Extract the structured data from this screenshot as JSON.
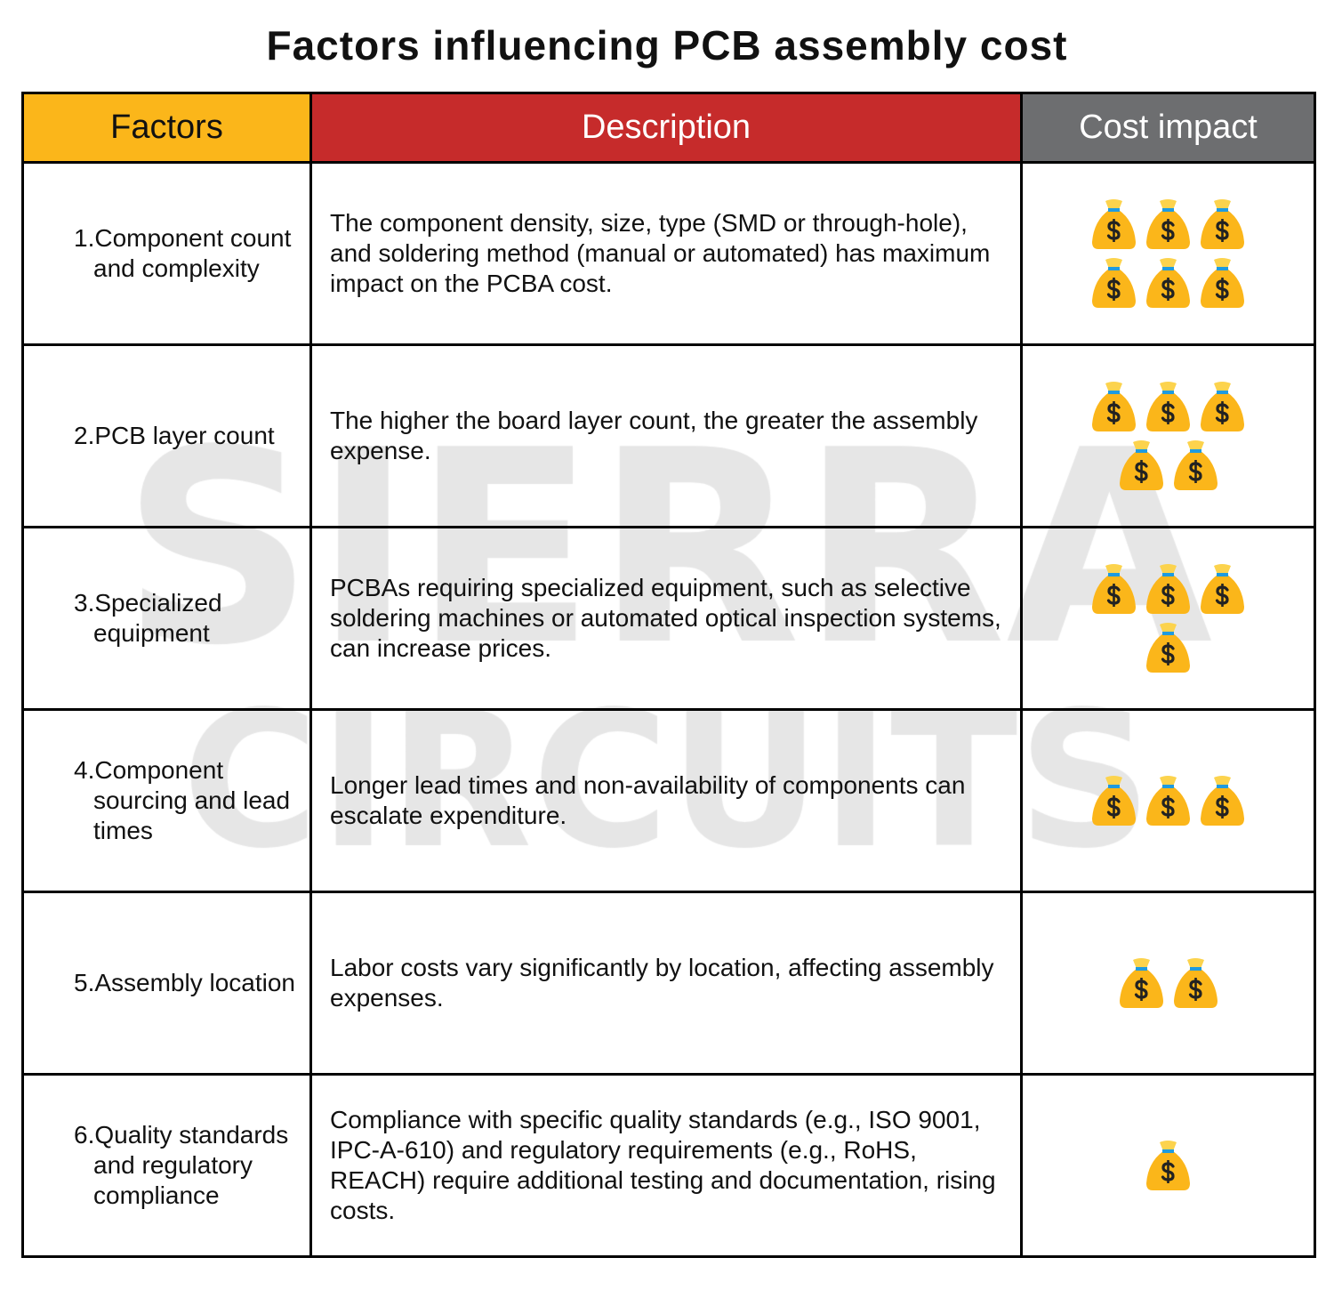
{
  "title": "Factors influencing PCB assembly cost",
  "watermark": [
    "SIERRA",
    "CIRCUITS"
  ],
  "headers": {
    "factors": "Factors",
    "description": "Description",
    "cost": "Cost impact"
  },
  "colors": {
    "factors_header": "#fbb61a",
    "description_header": "#c62b2b",
    "cost_header": "#6d6e70",
    "money_bag": "#fbb61a"
  },
  "rows": [
    {
      "factor": "1.Component count and complexity",
      "description": "The component density, size, type (SMD or through-hole), and soldering method (manual or automated) has maximum impact on the PCBA cost.",
      "cost_icons": 6
    },
    {
      "factor": "2.PCB layer count",
      "description": "The higher the board layer count, the greater the assembly expense.",
      "cost_icons": 5
    },
    {
      "factor": "3.Specialized equipment",
      "description": "PCBAs requiring specialized equipment, such as selective soldering machines or automated optical inspection systems, can increase prices.",
      "cost_icons": 4
    },
    {
      "factor": "4.Component sourcing and lead times",
      "description": "Longer lead times and non-availability of components can escalate expenditure.",
      "cost_icons": 3
    },
    {
      "factor": "5.Assembly location",
      "description": "Labor costs vary significantly by location, affecting assembly expenses.",
      "cost_icons": 2
    },
    {
      "factor": "6.Quality standards and regulatory compliance",
      "description": "Compliance with specific quality standards (e.g., ISO 9001, IPC-A-610) and regulatory requirements (e.g., RoHS, REACH) require additional testing and documentation, rising costs.",
      "cost_icons": 1
    }
  ]
}
